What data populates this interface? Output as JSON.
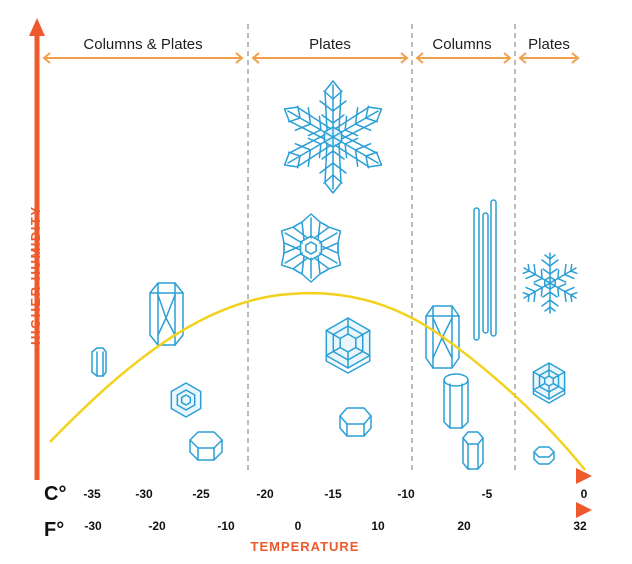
{
  "diagram": {
    "y_axis_title": "HIGHER HUMIDITY",
    "x_axis_title": "TEMPERATURE",
    "celsius_unit": "C°",
    "fahrenheit_unit": "F°",
    "celsius_ticks": [
      "-35",
      "-30",
      "-25",
      "-20",
      "-15",
      "-10",
      "-5",
      "0"
    ],
    "fahrenheit_ticks": [
      "-30",
      "-20",
      "-10",
      "0",
      "10",
      "20",
      "32"
    ],
    "regions": [
      {
        "label": "Columns & Plates"
      },
      {
        "label": "Plates"
      },
      {
        "label": "Columns"
      },
      {
        "label": "Plates"
      }
    ],
    "crystals": [
      "dendrite-snowflake-large",
      "sectored-plate",
      "capped-column",
      "short-column",
      "hexagonal-plate-small",
      "hexagonal-prism",
      "sectored-hexagon",
      "hexagonal-prism-small",
      "needles",
      "hollow-column",
      "column",
      "short-column-small",
      "dendrite-snowflake-small",
      "sectored-hexagon-small",
      "hexagonal-prism-tiny"
    ],
    "colors": {
      "axis_orange": "#ee5a2b",
      "axis_blue": "#3aa6dc",
      "range_arrows": "#f0a04b",
      "curve": "#f2d21c",
      "crystal": "#2a9fd6"
    }
  }
}
